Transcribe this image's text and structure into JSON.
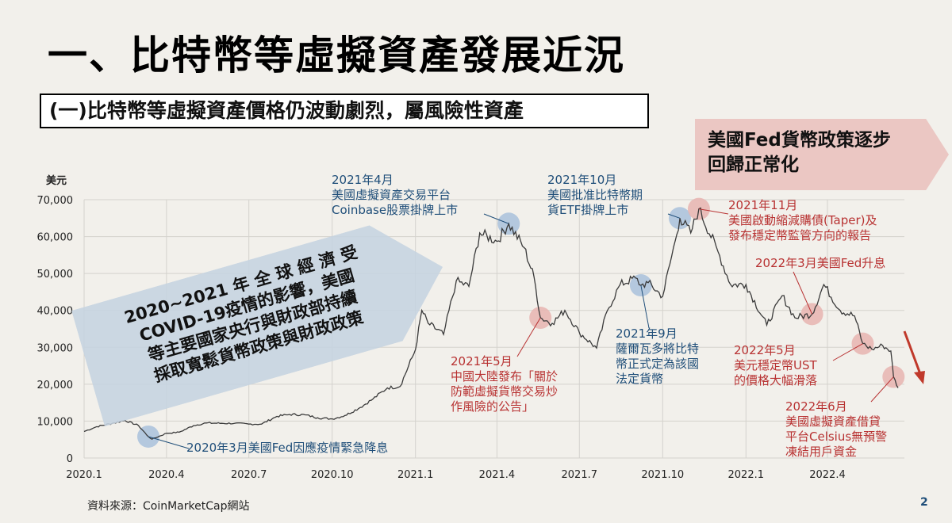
{
  "title": "一、比特幣等虛擬資產發展近況",
  "subtitle": "(一)比特幣等虛擬資產價格仍波動劇烈，屬風險性資產",
  "fed_box": {
    "lines": [
      "美國Fed貨幣政策逐步",
      "回歸正常化"
    ]
  },
  "covid_box": {
    "lines": [
      "2020~2021 年 全 球 經 濟 受",
      "COVID-19疫情的影響，美國",
      "等主要國家央行與財政部持續",
      "採取寬鬆貨幣政策與財政政策"
    ]
  },
  "annotations": {
    "coinbase": {
      "lines": [
        "2021年4月",
        "美國虛擬資產交易平台",
        "Coinbase股票掛牌上市"
      ]
    },
    "etf": {
      "lines": [
        "2021年10月",
        "美國批准比特幣期",
        "貨ETF掛牌上市"
      ]
    },
    "taper": {
      "lines": [
        "2021年11月",
        "美國啟動縮減購債(Taper)及",
        "發布穩定幣監管方向的報告"
      ]
    },
    "fed_hike": {
      "lines": [
        "2022年3月美國Fed升息"
      ]
    },
    "china": {
      "lines": [
        "2021年5月",
        "中國大陸發布「關於",
        "防範虛擬貨幣交易炒",
        "作風險的公告」"
      ]
    },
    "salvador": {
      "lines": [
        "2021年9月",
        "薩爾瓦多將比特",
        "幣正式定為該國",
        "法定貨幣"
      ]
    },
    "ust": {
      "lines": [
        "2022年5月",
        "美元穩定幣UST",
        "的價格大幅滑落"
      ]
    },
    "celsius": {
      "lines": [
        "2022年6月",
        "美國虛擬資產借貸",
        "平台Celsius無預警",
        "凍結用戶資金"
      ]
    },
    "covid_cut": {
      "lines": [
        "2020年3月美國Fed因應疫情緊急降息"
      ]
    }
  },
  "source": "資料來源：CoinMarketCap網站",
  "page_number": "2",
  "colors": {
    "price_line": "#3a3a3a",
    "blue_text": "#1f4e79",
    "red_text": "#b83232",
    "blue_marker": "#a9c1dc",
    "red_marker": "#e8b4b0"
  },
  "chart_data": {
    "type": "line",
    "title": "",
    "ylabel": "美元",
    "xlabel": "",
    "ylim": [
      0,
      70000
    ],
    "yticks": [
      "0",
      "10,000",
      "20,000",
      "30,000",
      "40,000",
      "50,000",
      "60,000",
      "70,000"
    ],
    "xticks": [
      "2020.1",
      "2020.4",
      "2020.7",
      "2020.10",
      "2021.1",
      "2021.4",
      "2021.7",
      "2021.10",
      "2022.1",
      "2022.4"
    ],
    "grid": true,
    "series": [
      {
        "x": [
          "2020-01-01",
          "2020-01-15",
          "2020-02-01",
          "2020-02-15",
          "2020-03-01",
          "2020-03-12",
          "2020-03-16",
          "2020-04-01",
          "2020-04-15",
          "2020-05-01",
          "2020-05-15",
          "2020-06-01",
          "2020-06-15",
          "2020-07-01",
          "2020-07-15",
          "2020-08-01",
          "2020-08-15",
          "2020-09-01",
          "2020-09-15",
          "2020-10-01",
          "2020-10-15",
          "2020-11-01",
          "2020-11-15",
          "2020-12-01",
          "2020-12-15",
          "2021-01-01",
          "2021-01-08",
          "2021-01-15",
          "2021-02-01",
          "2021-02-15",
          "2021-03-01",
          "2021-03-13",
          "2021-04-01",
          "2021-04-14",
          "2021-05-01",
          "2021-05-12",
          "2021-05-19",
          "2021-06-01",
          "2021-06-15",
          "2021-07-01",
          "2021-07-20",
          "2021-08-01",
          "2021-08-15",
          "2021-09-01",
          "2021-09-07",
          "2021-09-15",
          "2021-10-01",
          "2021-10-15",
          "2021-10-20",
          "2021-11-01",
          "2021-11-10",
          "2021-12-01",
          "2021-12-15",
          "2022-01-01",
          "2022-01-24",
          "2022-02-10",
          "2022-02-24",
          "2022-03-15",
          "2022-03-28",
          "2022-04-15",
          "2022-05-01",
          "2022-05-10",
          "2022-05-20",
          "2022-06-01",
          "2022-06-10",
          "2022-06-13",
          "2022-06-18"
        ],
        "y": [
          7200,
          8500,
          9400,
          10200,
          8800,
          5800,
          5100,
          6700,
          7000,
          8800,
          9500,
          9400,
          9400,
          9200,
          9200,
          11300,
          11800,
          11700,
          10900,
          10600,
          11500,
          13700,
          16000,
          19000,
          19400,
          29400,
          40000,
          36500,
          33500,
          48000,
          46500,
          61000,
          58700,
          63500,
          57000,
          49000,
          38000,
          36500,
          40000,
          34000,
          29800,
          40000,
          47000,
          48800,
          46800,
          47500,
          43800,
          59000,
          65000,
          61000,
          67500,
          56000,
          47000,
          47000,
          36000,
          44000,
          38000,
          39000,
          47000,
          40000,
          38500,
          31000,
          29500,
          30500,
          29000,
          22000,
          19000
        ]
      }
    ],
    "events": [
      {
        "date": "2020-03-12",
        "kind": "blue"
      },
      {
        "date": "2021-04-14",
        "kind": "blue"
      },
      {
        "date": "2021-05-19",
        "kind": "red"
      },
      {
        "date": "2021-09-07",
        "kind": "blue"
      },
      {
        "date": "2021-10-20",
        "kind": "blue"
      },
      {
        "date": "2021-11-10",
        "kind": "red"
      },
      {
        "date": "2022-03-15",
        "kind": "red"
      },
      {
        "date": "2022-05-10",
        "kind": "red"
      },
      {
        "date": "2022-06-13",
        "kind": "red"
      }
    ]
  }
}
